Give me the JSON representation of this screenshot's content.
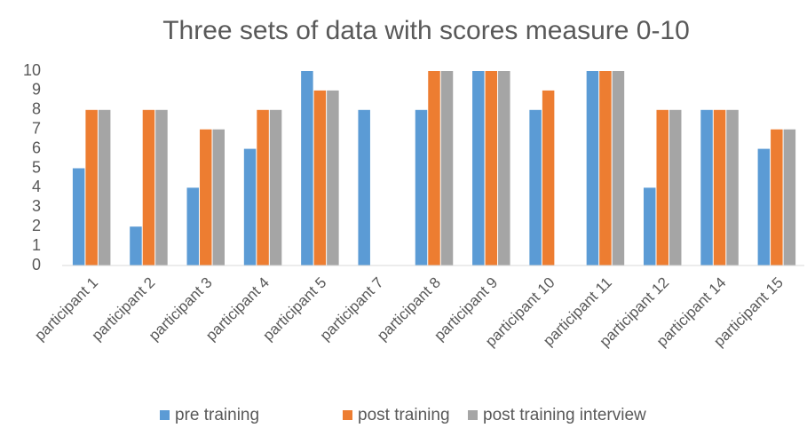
{
  "chart_data": {
    "type": "bar",
    "title": "Three sets of data with scores measure 0-10",
    "categories": [
      "participant 1",
      "participant 2",
      "participant 3",
      "participant 4",
      "participant 5",
      "participant 7",
      "participant 8",
      "participant 9",
      "participant 10",
      "participant 11",
      "participant 12",
      "participant 14",
      "participant 15"
    ],
    "series": [
      {
        "name": "pre training",
        "color": "#5b9bd5",
        "values": [
          5,
          2,
          4,
          6,
          10,
          8,
          8,
          10,
          8,
          10,
          4,
          8,
          6
        ]
      },
      {
        "name": "post training",
        "color": "#ed7d31",
        "values": [
          8,
          8,
          7,
          8,
          9,
          null,
          10,
          10,
          9,
          10,
          8,
          8,
          7
        ]
      },
      {
        "name": "post training interview",
        "color": "#a5a5a5",
        "values": [
          8,
          8,
          7,
          8,
          9,
          null,
          10,
          10,
          null,
          10,
          8,
          8,
          7
        ]
      }
    ],
    "ylim": [
      0,
      10
    ],
    "yticks": [
      0,
      1,
      2,
      3,
      4,
      5,
      6,
      7,
      8,
      9,
      10
    ],
    "grid": false,
    "legend": "bottom"
  }
}
